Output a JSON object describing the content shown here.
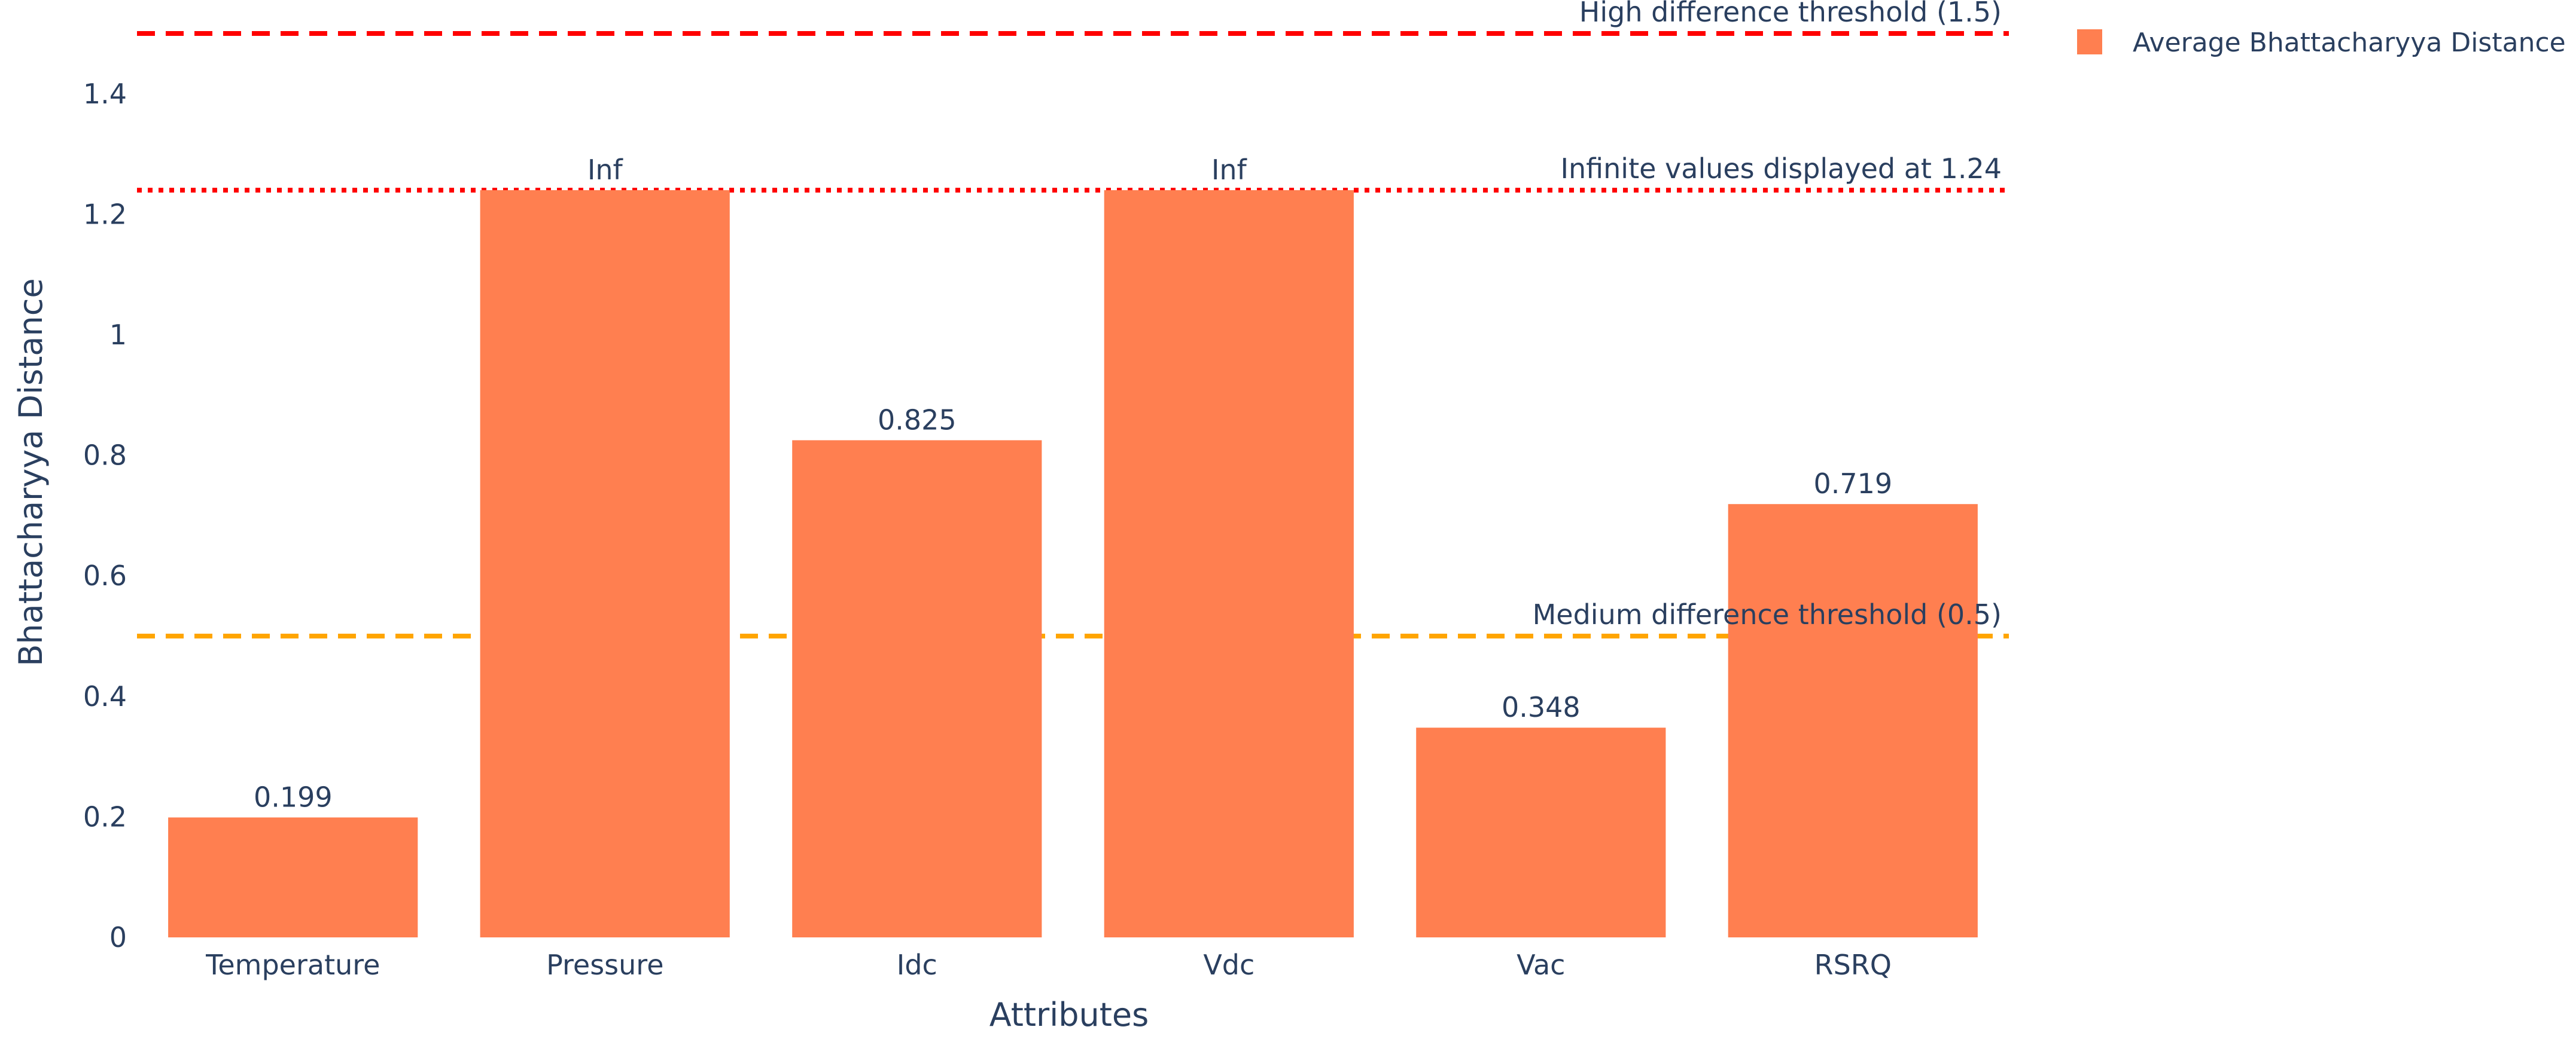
{
  "chart_data": {
    "type": "bar",
    "title": "",
    "xlabel": "Attributes",
    "ylabel": "Bhattacharyya Distance",
    "categories": [
      "Temperature",
      "Pressure",
      "Idc",
      "Vdc",
      "Vac",
      "RSRQ"
    ],
    "series": [
      {
        "name": "Average Bhattacharyya Distance",
        "values": [
          0.199,
          1.24,
          0.825,
          1.24,
          0.348,
          0.719
        ],
        "data_labels": [
          "0.199",
          "Inf",
          "0.825",
          "Inf",
          "0.348",
          "0.719"
        ],
        "color": "#ff7f50"
      }
    ],
    "ylim": [
      0,
      1.5
    ],
    "yticks": [
      0,
      0.2,
      0.4,
      0.6,
      0.8,
      1,
      1.2,
      1.4
    ],
    "ytick_labels": [
      "0",
      "0.2",
      "0.4",
      "0.6",
      "0.8",
      "1",
      "1.2",
      "1.4"
    ],
    "grid": false,
    "legend": {
      "position": "top-right",
      "entries": [
        "Average Bhattacharyya Distance"
      ]
    },
    "reference_lines": [
      {
        "value": 1.5,
        "label": "High difference threshold (1.5)",
        "color": "#ff0000",
        "style": "dash"
      },
      {
        "value": 1.24,
        "label": "Infinite values displayed at 1.24",
        "color": "#ff0000",
        "style": "dot"
      },
      {
        "value": 0.5,
        "label": "Medium difference threshold (0.5)",
        "color": "#ffa500",
        "style": "dash"
      }
    ],
    "text_color": "#2a3f5f"
  }
}
